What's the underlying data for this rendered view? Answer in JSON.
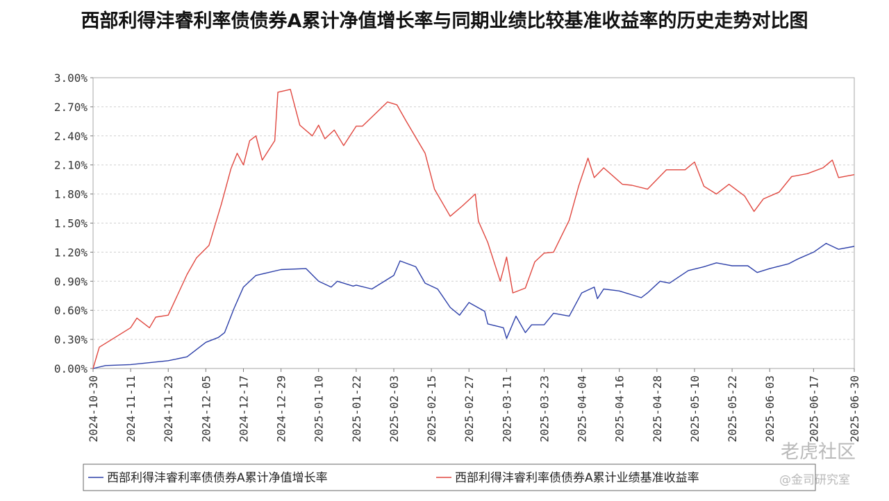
{
  "chart_data": {
    "type": "line",
    "title": "西部利得沣睿利率债债券A累计净值增长率与同期业绩比较基准收益率的历史走势对比图",
    "ylim": [
      0,
      3.0
    ],
    "y_unit": "%",
    "y_ticks": [
      "3.00%",
      "2.70%",
      "2.40%",
      "2.10%",
      "1.80%",
      "1.50%",
      "1.20%",
      "0.90%",
      "0.60%",
      "0.30%",
      "0.00%"
    ],
    "x_ticks": [
      "2024-10-30",
      "2024-11-11",
      "2024-11-23",
      "2024-12-05",
      "2024-12-17",
      "2024-12-29",
      "2025-01-10",
      "2025-01-22",
      "2025-02-03",
      "2025-02-15",
      "2025-02-27",
      "2025-03-11",
      "2025-03-23",
      "2025-04-04",
      "2025-04-16",
      "2025-04-28",
      "2025-05-10",
      "2025-05-22",
      "2025-06-03",
      "2025-06-17",
      "2025-06-30"
    ],
    "grid": true,
    "legend_position": "bottom",
    "colors": {
      "nav": "#2b3ea8",
      "benchmark": "#e0463e"
    },
    "series": [
      {
        "name": "西部利得沣睿利率债债券A累计净值增长率",
        "key": "nav",
        "x": [
          "2024-10-30",
          "2024-11-03",
          "2024-11-11",
          "2024-11-23",
          "2024-11-29",
          "2024-12-05",
          "2024-12-09",
          "2024-12-11",
          "2024-12-14",
          "2024-12-17",
          "2024-12-21",
          "2024-12-29",
          "2025-01-06",
          "2025-01-10",
          "2025-01-12",
          "2025-01-14",
          "2025-01-16",
          "2025-01-21",
          "2025-01-22",
          "2025-01-27",
          "2025-02-03",
          "2025-02-05",
          "2025-02-10",
          "2025-02-13",
          "2025-02-17",
          "2025-02-21",
          "2025-02-24",
          "2025-02-27",
          "2025-03-04",
          "2025-03-05",
          "2025-03-10",
          "2025-03-11",
          "2025-03-14",
          "2025-03-17",
          "2025-03-19",
          "2025-03-23",
          "2025-03-26",
          "2025-03-31",
          "2025-04-04",
          "2025-04-08",
          "2025-04-09",
          "2025-04-11",
          "2025-04-16",
          "2025-04-23",
          "2025-04-25",
          "2025-04-29",
          "2025-05-02",
          "2025-05-08",
          "2025-05-13",
          "2025-05-17",
          "2025-05-22",
          "2025-05-27",
          "2025-05-30",
          "2025-06-03",
          "2025-06-09",
          "2025-06-12",
          "2025-06-17",
          "2025-06-21",
          "2025-06-25",
          "2025-06-30"
        ],
        "values": [
          0.0,
          0.03,
          0.04,
          0.08,
          0.12,
          0.27,
          0.32,
          0.37,
          0.62,
          0.84,
          0.96,
          1.02,
          1.03,
          0.9,
          0.87,
          0.84,
          0.9,
          0.85,
          0.86,
          0.82,
          0.96,
          1.11,
          1.05,
          0.88,
          0.82,
          0.63,
          0.55,
          0.68,
          0.59,
          0.46,
          0.42,
          0.31,
          0.54,
          0.37,
          0.45,
          0.45,
          0.57,
          0.54,
          0.78,
          0.84,
          0.72,
          0.82,
          0.8,
          0.73,
          0.78,
          0.9,
          0.88,
          1.01,
          1.05,
          1.09,
          1.06,
          1.06,
          0.99,
          1.03,
          1.08,
          1.13,
          1.2,
          1.29,
          1.23,
          1.26
        ]
      },
      {
        "name": "西部利得沣睿利率债债券A累计业绩基准收益率",
        "key": "benchmark",
        "x": [
          "2024-10-30",
          "2024-11-01",
          "2024-11-06",
          "2024-11-11",
          "2024-11-13",
          "2024-11-17",
          "2024-11-19",
          "2024-11-23",
          "2024-11-29",
          "2024-12-02",
          "2024-12-06",
          "2024-12-10",
          "2024-12-13",
          "2024-12-15",
          "2024-12-17",
          "2024-12-19",
          "2024-12-21",
          "2024-12-23",
          "2024-12-27",
          "2024-12-28",
          "2025-01-01",
          "2025-01-04",
          "2025-01-08",
          "2025-01-10",
          "2025-01-12",
          "2025-01-15",
          "2025-01-18",
          "2025-01-22",
          "2025-01-24",
          "2025-02-01",
          "2025-02-04",
          "2025-02-07",
          "2025-02-13",
          "2025-02-16",
          "2025-02-21",
          "2025-02-25",
          "2025-03-01",
          "2025-03-02",
          "2025-03-05",
          "2025-03-09",
          "2025-03-10",
          "2025-03-11",
          "2025-03-13",
          "2025-03-17",
          "2025-03-20",
          "2025-03-23",
          "2025-03-26",
          "2025-03-31",
          "2025-04-03",
          "2025-04-06",
          "2025-04-08",
          "2025-04-11",
          "2025-04-17",
          "2025-04-20",
          "2025-04-25",
          "2025-05-01",
          "2025-05-07",
          "2025-05-10",
          "2025-05-13",
          "2025-05-17",
          "2025-05-21",
          "2025-05-26",
          "2025-05-29",
          "2025-06-01",
          "2025-06-06",
          "2025-06-10",
          "2025-06-15",
          "2025-06-20",
          "2025-06-23",
          "2025-06-25",
          "2025-06-30"
        ],
        "values": [
          0.0,
          0.22,
          0.32,
          0.42,
          0.52,
          0.42,
          0.53,
          0.55,
          0.97,
          1.14,
          1.27,
          1.7,
          2.06,
          2.22,
          2.1,
          2.35,
          2.4,
          2.15,
          2.35,
          2.85,
          2.88,
          2.51,
          2.4,
          2.51,
          2.37,
          2.46,
          2.3,
          2.5,
          2.5,
          2.75,
          2.72,
          2.55,
          2.22,
          1.85,
          1.57,
          1.68,
          1.8,
          1.52,
          1.3,
          0.9,
          1.02,
          1.15,
          0.78,
          0.83,
          1.1,
          1.19,
          1.2,
          1.53,
          1.88,
          2.17,
          1.97,
          2.07,
          1.9,
          1.89,
          1.85,
          2.05,
          2.05,
          2.13,
          1.88,
          1.8,
          1.9,
          1.78,
          1.62,
          1.75,
          1.82,
          1.98,
          2.01,
          2.07,
          2.15,
          1.97,
          2.0
        ]
      }
    ]
  },
  "watermark": {
    "primary": "老虎社区",
    "secondary": "@金司研究室"
  }
}
